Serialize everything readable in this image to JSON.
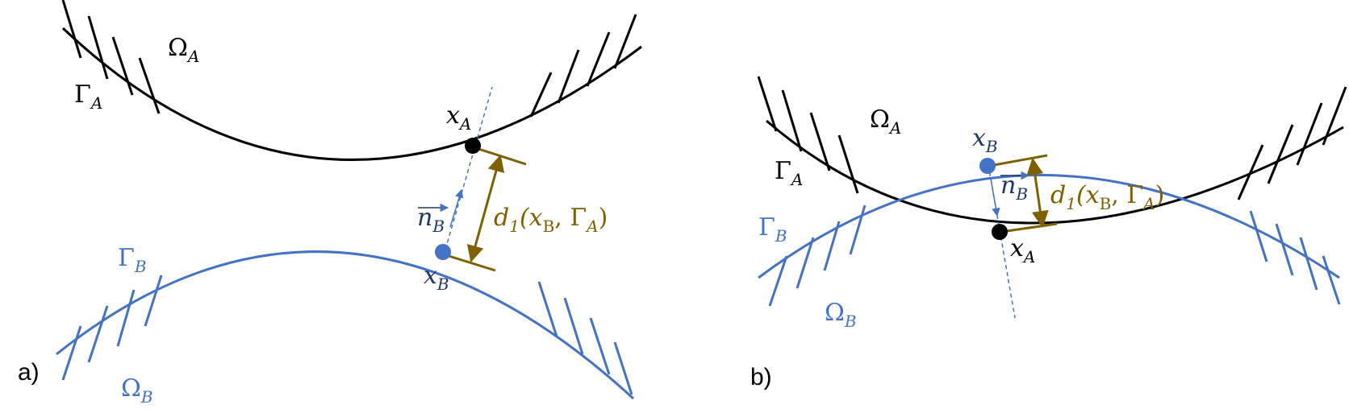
{
  "colors": {
    "surface_a": "#000000",
    "surface_b": "#4472c4",
    "normal_label": "#1f3864",
    "distance": "#7f6000"
  },
  "panel_a": {
    "tag": "a)",
    "omega_a": "Ω",
    "omega_a_sub": "A",
    "gamma_a": "Γ",
    "gamma_a_sub": "A",
    "gamma_b": "Γ",
    "gamma_b_sub": "B",
    "omega_b": "Ω",
    "omega_b_sub": "B",
    "point_a": "x",
    "point_a_sub": "A",
    "point_b": "x",
    "point_b_sub": "B",
    "normal": "n",
    "normal_sub": "B",
    "distance": "d",
    "distance_sub": "1",
    "distance_args": "(x",
    "distance_args_sub1": "B",
    "distance_sep": ", Γ",
    "distance_args_sub2": "A",
    "distance_close": ")"
  },
  "panel_b": {
    "tag": "b)",
    "omega_a": "Ω",
    "omega_a_sub": "A",
    "gamma_a": "Γ",
    "gamma_a_sub": "A",
    "gamma_b": "Γ",
    "gamma_b_sub": "B",
    "omega_b": "Ω",
    "omega_b_sub": "B",
    "point_a": "x",
    "point_a_sub": "A",
    "point_b": "x",
    "point_b_sub": "B",
    "normal": "n",
    "normal_sub": "B",
    "distance": "d",
    "distance_sub": "1",
    "distance_args": "(x",
    "distance_args_sub1": "B",
    "distance_sep": ", Γ",
    "distance_args_sub2": "A",
    "distance_close": ")"
  }
}
